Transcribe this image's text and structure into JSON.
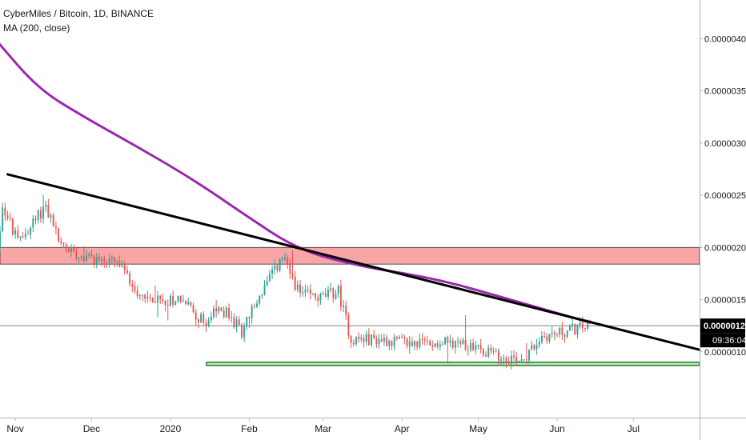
{
  "chart_data": {
    "type": "candlestick",
    "title": "CyberMiles / Bitcoin, 1D, BINANCE",
    "indicator": "MA (200, close)",
    "y_axis": {
      "range": [
        3.7e-07,
        4.37e-06
      ],
      "ticks": [
        "0.00000400",
        "0.00000350",
        "0.00000300",
        "0.00000250",
        "0.00000200",
        "0.00000150",
        "0.00000100"
      ],
      "tick_values": [
        4e-06,
        3.5e-06,
        3e-06,
        2.5e-06,
        2e-06,
        1.5e-06,
        1e-06
      ]
    },
    "x_axis": {
      "labels": [
        "Nov",
        "Dec",
        "2020",
        "Feb",
        "Mar",
        "Apr",
        "May",
        "Jun",
        "Jul"
      ],
      "label_dates": [
        "2019-11-01",
        "2019-12-01",
        "2020-01-01",
        "2020-02-01",
        "2020-03-01",
        "2020-04-01",
        "2020-05-01",
        "2020-06-01",
        "2020-07-01"
      ],
      "range": [
        "2019-10-26",
        "2020-07-27"
      ]
    },
    "current_price": {
      "label": "0.00000125",
      "value": 1.25e-06
    },
    "countdown": "09:36:04",
    "resistance_zone": {
      "low": 1.84e-06,
      "high": 2e-06
    },
    "support_zone": {
      "low": 8.7e-07,
      "high": 9e-07
    },
    "trendline": {
      "start": {
        "date": "2019-10-29",
        "value": 2.7e-06
      },
      "end": {
        "date": "2020-07-27",
        "value": 1.02e-06
      }
    },
    "ma200": [
      {
        "date": "2019-10-25",
        "value": 3.97e-06
      },
      {
        "date": "2019-11-10",
        "value": 3.52e-06
      },
      {
        "date": "2019-11-28",
        "value": 3.25e-06
      },
      {
        "date": "2019-12-20",
        "value": 2.95e-06
      },
      {
        "date": "2020-01-10",
        "value": 2.65e-06
      },
      {
        "date": "2020-01-31",
        "value": 2.3e-06
      },
      {
        "date": "2020-02-20",
        "value": 1.98e-06
      },
      {
        "date": "2020-03-15",
        "value": 1.82e-06
      },
      {
        "date": "2020-04-15",
        "value": 1.7e-06
      },
      {
        "date": "2020-05-15",
        "value": 1.49e-06
      },
      {
        "date": "2020-06-14",
        "value": 1.28e-06
      }
    ],
    "price_path": [
      {
        "date": "2019-10-25",
        "value": 1.78e-06
      },
      {
        "date": "2019-10-28",
        "value": 2.4e-06
      },
      {
        "date": "2019-11-03",
        "value": 2.05e-06
      },
      {
        "date": "2019-11-08",
        "value": 2.2e-06
      },
      {
        "date": "2019-11-14",
        "value": 2.4e-06
      },
      {
        "date": "2019-11-20",
        "value": 2.02e-06
      },
      {
        "date": "2019-12-01",
        "value": 1.9e-06
      },
      {
        "date": "2019-12-12",
        "value": 1.85e-06
      },
      {
        "date": "2019-12-20",
        "value": 1.58e-06
      },
      {
        "date": "2019-12-28",
        "value": 1.48e-06
      },
      {
        "date": "2020-01-06",
        "value": 1.52e-06
      },
      {
        "date": "2020-01-15",
        "value": 1.28e-06
      },
      {
        "date": "2020-01-22",
        "value": 1.42e-06
      },
      {
        "date": "2020-01-30",
        "value": 1.2e-06
      },
      {
        "date": "2020-02-07",
        "value": 1.58e-06
      },
      {
        "date": "2020-02-15",
        "value": 1.9e-06
      },
      {
        "date": "2020-02-22",
        "value": 1.55e-06
      },
      {
        "date": "2020-03-01",
        "value": 1.52e-06
      },
      {
        "date": "2020-03-08",
        "value": 1.58e-06
      },
      {
        "date": "2020-03-13",
        "value": 1.12e-06
      },
      {
        "date": "2020-03-25",
        "value": 1.12e-06
      },
      {
        "date": "2020-04-05",
        "value": 1.08e-06
      },
      {
        "date": "2020-04-20",
        "value": 1.1e-06
      },
      {
        "date": "2020-05-01",
        "value": 1.06e-06
      },
      {
        "date": "2020-05-10",
        "value": 9.5e-07
      },
      {
        "date": "2020-05-20",
        "value": 9.4e-07
      },
      {
        "date": "2020-05-27",
        "value": 1.15e-06
      },
      {
        "date": "2020-06-03",
        "value": 1.18e-06
      },
      {
        "date": "2020-06-14",
        "value": 1.25e-06
      }
    ],
    "colors": {
      "up": "#26a69a",
      "down": "#ef5350",
      "ma": "#9c27b0",
      "trendline": "#000000",
      "resistance_fill": "#f8a5a5",
      "support_fill": "#c8e6c9",
      "support_border": "#1b7f1b",
      "price_label_bg": "#000000"
    },
    "grid": false,
    "legend_position": "top-left"
  }
}
